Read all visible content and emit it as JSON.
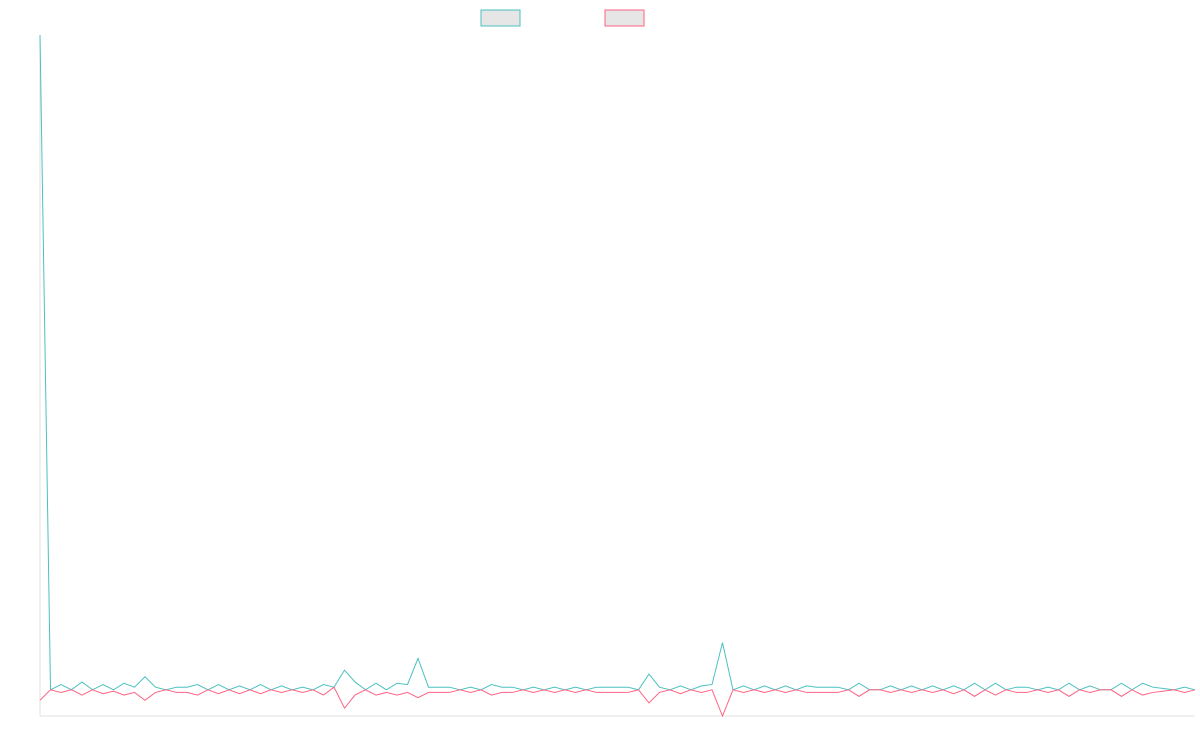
{
  "chart_data": {
    "type": "line",
    "categories": [
      null,
      null,
      null,
      null,
      null,
      null,
      null,
      null,
      null,
      null,
      null,
      null,
      null,
      null,
      null,
      null,
      null,
      null,
      null,
      null,
      null,
      null,
      null,
      null,
      null,
      null,
      null,
      null,
      null,
      null,
      null,
      null,
      null,
      null,
      null,
      null,
      null,
      null,
      null,
      null,
      null,
      null,
      null,
      null,
      null,
      null,
      null,
      null,
      null,
      null,
      null,
      null,
      null,
      null,
      null,
      null,
      null,
      null,
      null,
      null,
      null,
      null,
      null,
      null,
      null,
      null,
      null,
      null,
      null,
      null,
      null,
      null,
      null,
      null,
      null,
      null,
      null,
      null,
      null,
      null,
      null,
      null,
      null,
      null,
      null,
      null,
      null,
      null,
      null,
      null,
      null,
      null,
      null,
      null,
      null,
      null,
      null,
      null,
      null,
      null,
      null,
      null,
      null,
      null,
      null,
      null,
      null,
      null,
      null,
      null,
      null
    ],
    "series": [
      {
        "color": "#4bc0c0",
        "values": [
          25,
          0,
          0.2,
          0,
          0.3,
          0,
          0.2,
          0,
          0.25,
          0.1,
          0.5,
          0.1,
          0,
          0.1,
          0.1,
          0.2,
          0,
          0.2,
          0,
          0.15,
          0,
          0.2,
          0,
          0.15,
          0,
          0.1,
          0,
          0.2,
          0.1,
          0.75,
          0.3,
          0,
          0.25,
          0,
          0.25,
          0.2,
          1.2,
          0.1,
          0.1,
          0.1,
          0,
          0.1,
          0,
          0.2,
          0.1,
          0.1,
          0,
          0.1,
          0,
          0.1,
          0,
          0.1,
          0,
          0.1,
          0.1,
          0.1,
          0.1,
          0,
          0.6,
          0.1,
          0,
          0.15,
          0,
          0.15,
          0.2,
          1.8,
          0,
          0.15,
          0,
          0.15,
          0,
          0.15,
          0,
          0.15,
          0.1,
          0.1,
          0.1,
          0,
          0.25,
          0,
          0,
          0.15,
          0,
          0.15,
          0,
          0.15,
          0,
          0.15,
          0,
          0.25,
          0,
          0.25,
          0,
          0.1,
          0.1,
          0,
          0.1,
          0,
          0.25,
          0,
          0.15,
          0,
          0,
          0.25,
          0,
          0.25,
          0.1,
          0.05,
          0,
          0.1,
          0
        ]
      },
      {
        "color": "#ff6384",
        "values": [
          -0.4,
          0,
          -0.1,
          0,
          -0.2,
          0,
          -0.15,
          -0.05,
          -0.2,
          -0.1,
          -0.4,
          -0.1,
          0,
          -0.1,
          -0.1,
          -0.2,
          0,
          -0.15,
          0,
          -0.15,
          0,
          -0.15,
          0,
          -0.1,
          0,
          -0.1,
          0,
          -0.2,
          0.1,
          -0.7,
          -0.2,
          0,
          -0.2,
          -0.1,
          -0.2,
          -0.1,
          -0.3,
          -0.1,
          -0.1,
          -0.1,
          0,
          -0.1,
          0,
          -0.2,
          -0.1,
          -0.1,
          0,
          -0.1,
          0,
          -0.1,
          0,
          -0.1,
          0,
          -0.1,
          -0.1,
          -0.1,
          -0.1,
          0,
          -0.5,
          -0.1,
          0,
          -0.15,
          0,
          -0.1,
          0,
          -1.0,
          0,
          -0.1,
          0,
          -0.1,
          0,
          -0.1,
          0,
          -0.1,
          -0.1,
          -0.1,
          -0.1,
          0,
          -0.25,
          0,
          0,
          -0.1,
          0,
          -0.1,
          0,
          -0.1,
          0,
          -0.15,
          0,
          -0.25,
          0,
          -0.2,
          0,
          -0.1,
          -0.1,
          0,
          -0.1,
          0,
          -0.25,
          0,
          -0.1,
          0,
          0,
          -0.25,
          0,
          -0.2,
          -0.1,
          -0.05,
          0,
          -0.1,
          0
        ]
      }
    ],
    "ylim": [
      -1,
      25
    ]
  }
}
